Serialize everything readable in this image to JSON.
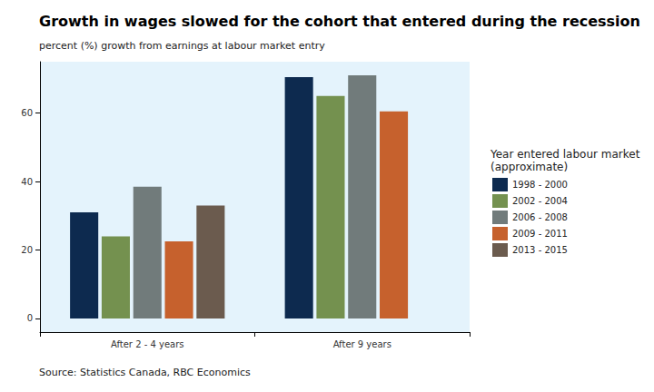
{
  "chart_data": {
    "type": "bar",
    "title": "Growth in wages slowed for the cohort that entered during the recession",
    "subtitle": "percent (%) growth from earnings at labour market entry",
    "source": "Source: Statistics Canada, RBC Economics",
    "legend_title": "Year entered labour market (approximate)",
    "categories": [
      "After 2 - 4 years",
      "After 9 years"
    ],
    "series": [
      {
        "name": "1998 - 2000",
        "color": "#0d2a4f",
        "values": [
          31,
          70.5
        ]
      },
      {
        "name": "2002 - 2004",
        "color": "#74914f",
        "values": [
          24,
          65
        ]
      },
      {
        "name": "2006 - 2008",
        "color": "#717b7b",
        "values": [
          38.5,
          71
        ]
      },
      {
        "name": "2009 - 2011",
        "color": "#c6612d",
        "values": [
          22.5,
          60.5
        ]
      },
      {
        "name": "2013 - 2015",
        "color": "#6b5b4e",
        "values": [
          33,
          null
        ]
      }
    ],
    "ylim": [
      -4,
      75
    ],
    "yticks": [
      0,
      20,
      40,
      60
    ],
    "grid": false,
    "legend": "right"
  }
}
